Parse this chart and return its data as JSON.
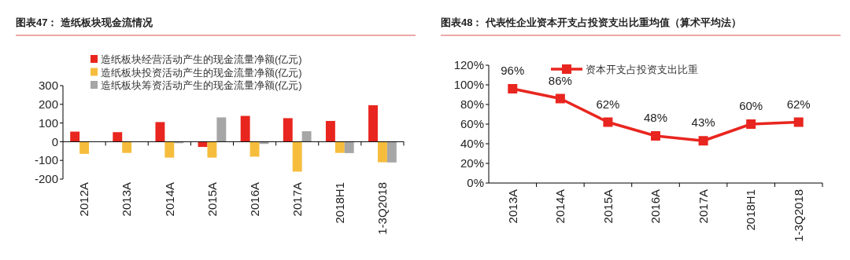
{
  "chart_data": [
    {
      "type": "bar",
      "title": "图表47：  造纸板块现金流情况",
      "categories": [
        "2012A",
        "2013A",
        "2014A",
        "2015A",
        "2016A",
        "2017A",
        "2018H1",
        "1-3Q2018"
      ],
      "series": [
        {
          "name": "造纸板块经营活动产生的现金流量净额(亿元)",
          "color": "#e8261f",
          "values": [
            54,
            51,
            105,
            -28,
            138,
            126,
            111,
            195
          ]
        },
        {
          "name": "造纸板块投资活动产生的现金流量净额(亿元)",
          "color": "#f6bd3c",
          "values": [
            -65,
            -60,
            -85,
            -85,
            -80,
            -160,
            -60,
            -110
          ]
        },
        {
          "name": "造纸板块筹资活动产生的现金流量净额(亿元)",
          "color": "#a6a6a6",
          "values": [
            0,
            0,
            -8,
            130,
            -12,
            56,
            -61,
            -111
          ]
        }
      ],
      "ylim": [
        -200,
        300
      ],
      "yticks": [
        -200,
        -100,
        0,
        100,
        200,
        300
      ],
      "legend": "top"
    },
    {
      "type": "line",
      "title": "图表48：  代表性企业资本开支占投资支出比重均值（算术平均法）",
      "categories": [
        "2013A",
        "2014A",
        "2015A",
        "2016A",
        "2017A",
        "2018H1",
        "1-3Q2018"
      ],
      "series": [
        {
          "name": "资本开支占投资支出比重",
          "color": "#e8261f",
          "values": [
            96,
            86,
            62,
            48,
            43,
            60,
            62
          ],
          "value_labels": [
            "96%",
            "86%",
            "62%",
            "48%",
            "43%",
            "60%",
            "62%"
          ]
        }
      ],
      "ylim": [
        0,
        120
      ],
      "yticks": [
        {
          "value": 0,
          "label": "0%"
        },
        {
          "value": 20,
          "label": "20%"
        },
        {
          "value": 40,
          "label": "40%"
        },
        {
          "value": 60,
          "label": "60%"
        },
        {
          "value": 80,
          "label": "80%"
        },
        {
          "value": 100,
          "label": "100%"
        },
        {
          "value": 120,
          "label": "120%"
        }
      ],
      "legend": "top",
      "marker": "square"
    }
  ]
}
